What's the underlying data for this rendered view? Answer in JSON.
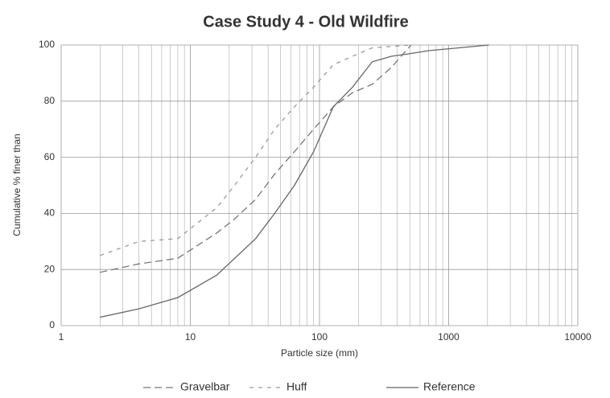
{
  "chart_data": {
    "type": "line",
    "title": "Case Study 4 - Old Wildfire",
    "x_label": "Particle size (mm)",
    "y_label": "Cumulative % finer than",
    "xscale": "log",
    "xlim": [
      1,
      10000
    ],
    "xticks": [
      1,
      10,
      100,
      1000,
      10000
    ],
    "ylim": [
      0,
      100
    ],
    "yticks": [
      0,
      20,
      40,
      60,
      80,
      100
    ],
    "grid": true,
    "legend": "bottom",
    "series": [
      {
        "name": "Gravelbar",
        "color": "#777",
        "dash": "long",
        "x": [
          2,
          4,
          8,
          16,
          22,
          32,
          45,
          64,
          90,
          128,
          180,
          256,
          360,
          512
        ],
        "values": [
          19,
          22,
          24,
          33,
          38,
          45,
          54,
          62,
          70,
          78,
          83,
          86,
          92,
          100
        ]
      },
      {
        "name": "Huff",
        "color": "#999",
        "dash": "short",
        "x": [
          2,
          4,
          8,
          16,
          22,
          32,
          45,
          64,
          90,
          128,
          180,
          256,
          512
        ],
        "values": [
          25,
          30,
          31,
          42,
          50,
          60,
          70,
          78,
          85,
          93,
          96,
          99,
          100
        ]
      },
      {
        "name": "Reference",
        "color": "#666",
        "dash": "solid",
        "x": [
          2,
          4,
          8,
          16,
          32,
          45,
          64,
          90,
          128,
          180,
          256,
          360,
          512,
          700,
          2048
        ],
        "values": [
          3,
          6,
          10,
          18,
          31,
          40,
          50,
          62,
          78,
          85,
          94,
          96,
          97,
          98,
          100
        ]
      }
    ]
  }
}
